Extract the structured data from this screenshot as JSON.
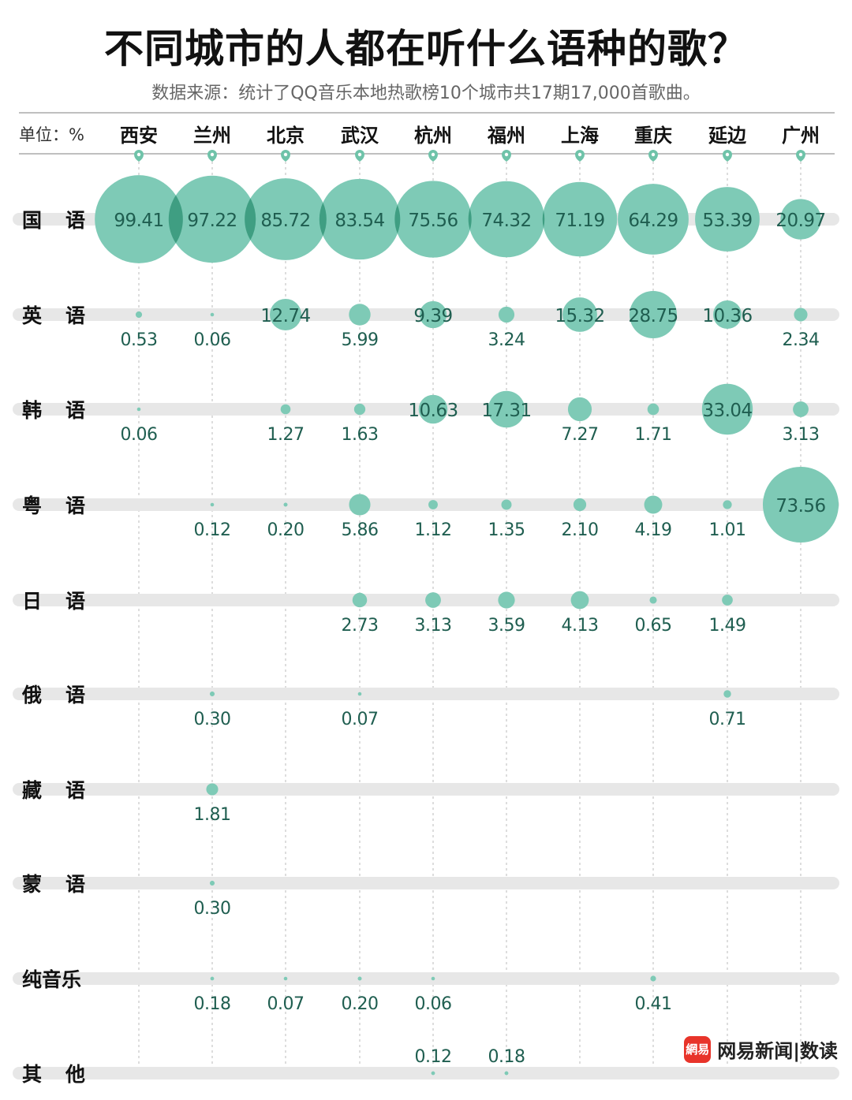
{
  "header": {
    "title": "不同城市的人都在听什么语种的歌？",
    "subtitle": "数据来源：统计了QQ音乐本地热歌榜10个城市共17期17,000首歌曲。",
    "unit_label": "单位：%"
  },
  "brand": {
    "icon_text": "網易",
    "text": "网易新闻|数读"
  },
  "colors": {
    "bubble": "#7ecab6",
    "overlap": "#3f9e82",
    "label": "#1f5e50",
    "track": "#e7e7e7",
    "rule": "#bbbbbb",
    "pin": "#6fc3a9"
  },
  "chart_data": {
    "type": "bubble-matrix",
    "title": "不同城市的人都在听什么语种的歌？",
    "unit": "%",
    "cities": [
      "西安",
      "兰州",
      "北京",
      "武汉",
      "杭州",
      "福州",
      "上海",
      "重庆",
      "延边",
      "广州"
    ],
    "languages": [
      "国 语",
      "英 语",
      "韩 语",
      "粤 语",
      "日 语",
      "俄 语",
      "藏 语",
      "蒙 语",
      "纯音乐",
      "其 他"
    ],
    "values": [
      [
        99.41,
        97.22,
        85.72,
        83.54,
        75.56,
        74.32,
        71.19,
        64.29,
        53.39,
        20.97
      ],
      [
        0.53,
        0.06,
        12.74,
        5.99,
        9.39,
        3.24,
        15.32,
        28.75,
        10.36,
        2.34
      ],
      [
        0.06,
        null,
        1.27,
        1.63,
        10.63,
        17.31,
        7.27,
        1.71,
        33.04,
        3.13
      ],
      [
        null,
        0.12,
        0.2,
        5.86,
        1.12,
        1.35,
        2.1,
        4.19,
        1.01,
        73.56
      ],
      [
        null,
        null,
        null,
        2.73,
        3.13,
        3.59,
        4.13,
        0.65,
        1.49,
        null
      ],
      [
        null,
        0.3,
        null,
        0.07,
        null,
        null,
        null,
        null,
        0.71,
        null
      ],
      [
        null,
        1.81,
        null,
        null,
        null,
        null,
        null,
        null,
        null,
        null
      ],
      [
        null,
        0.3,
        null,
        null,
        null,
        null,
        null,
        null,
        null,
        null
      ],
      [
        null,
        0.18,
        0.07,
        0.2,
        0.06,
        null,
        null,
        0.41,
        null,
        null
      ],
      [
        null,
        null,
        null,
        null,
        0.12,
        0.18,
        null,
        null,
        null,
        null
      ]
    ],
    "labels": [
      [
        "99.41",
        "97.22",
        "85.72",
        "83.54",
        "75.56",
        "74.32",
        "71.19",
        "64.29",
        "53.39",
        "20.97"
      ],
      [
        "0.53",
        "0.06",
        "12.74",
        "5.99",
        "9.39",
        "3.24",
        "15.32",
        "28.75",
        "10.36",
        "2.34"
      ],
      [
        "0.06",
        null,
        "1.27",
        "1.63",
        "10.63",
        "17.31",
        "7.27",
        "1.71",
        "33.04",
        "3.13"
      ],
      [
        null,
        "0.12",
        "0.20",
        "5.86",
        "1.12",
        "1.35",
        "2.10",
        "4.19",
        "1.01",
        "73.56"
      ],
      [
        null,
        null,
        null,
        "2.73",
        "3.13",
        "3.59",
        "4.13",
        "0.65",
        "1.49",
        null
      ],
      [
        null,
        "0.30",
        null,
        "0.07",
        null,
        null,
        null,
        null,
        "0.71",
        null
      ],
      [
        null,
        "1.81",
        null,
        null,
        null,
        null,
        null,
        null,
        null,
        null
      ],
      [
        null,
        "0.30",
        null,
        null,
        null,
        null,
        null,
        null,
        null,
        null
      ],
      [
        null,
        "0.18",
        "0.07",
        "0.20",
        "0.06",
        null,
        null,
        "0.41",
        null,
        null
      ],
      [
        null,
        null,
        null,
        null,
        "0.12",
        "0.18",
        null,
        null,
        null,
        null
      ]
    ]
  }
}
